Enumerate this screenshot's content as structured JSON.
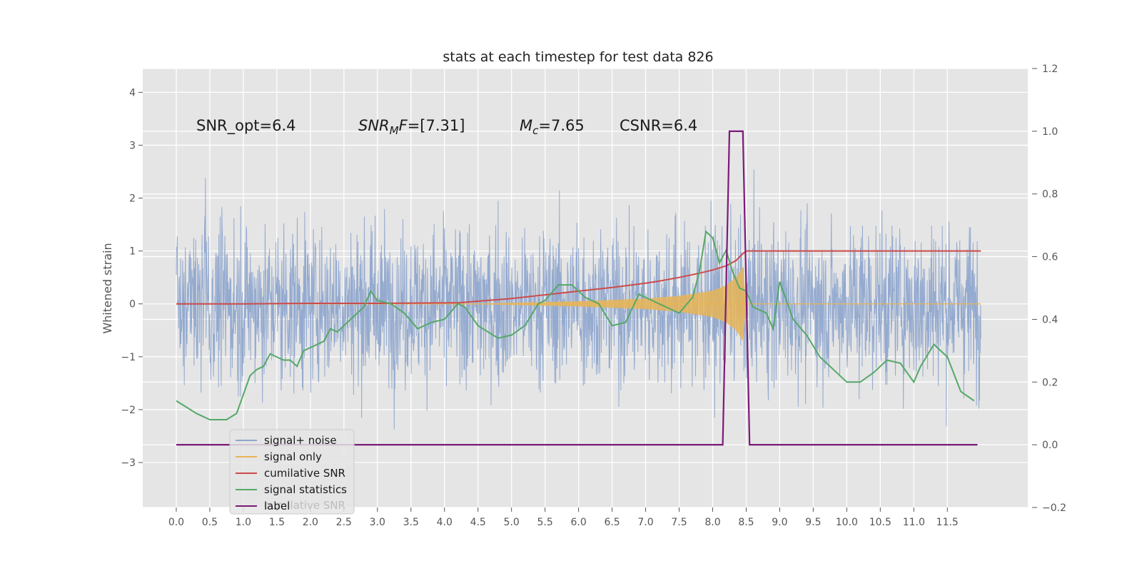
{
  "chart_data": {
    "type": "line",
    "title": "stats at each timestep for test data 826",
    "ylabel": "Whitened strain",
    "xlim": [
      -0.5,
      12.7
    ],
    "ylim": [
      -3.85,
      4.45
    ],
    "y2lim": [
      -0.2,
      1.2
    ],
    "xticks": [
      "0.0",
      "0.5",
      "1.0",
      "1.5",
      "2.0",
      "2.5",
      "3.0",
      "3.5",
      "4.0",
      "4.5",
      "5.0",
      "5.5",
      "6.0",
      "6.5",
      "7.0",
      "7.5",
      "8.0",
      "8.5",
      "9.0",
      "9.5",
      "10.0",
      "10.5",
      "11.0",
      "11.5"
    ],
    "yticks": [
      "4",
      "3",
      "2",
      "1",
      "0",
      "−1",
      "−2",
      "−3"
    ],
    "yticks_values": [
      4,
      3,
      2,
      1,
      0,
      -1,
      -2,
      -3
    ],
    "y2ticks": [
      "1.2",
      "1.0",
      "0.8",
      "0.6",
      "0.4",
      "0.2",
      "0.0",
      "−0.2"
    ],
    "y2ticks_values": [
      1.2,
      1.0,
      0.8,
      0.6,
      0.4,
      0.2,
      0.0,
      -0.2
    ],
    "grid": true,
    "legend_position": "lower-left",
    "annotations": {
      "snr_opt": "SNR_opt=6.4",
      "snr_mf_main": "SNR",
      "snr_mf_sub": "M",
      "snr_mf_tail": "F",
      "snr_mf_value": "=[7.31]",
      "mc_main": "M",
      "mc_sub": "c",
      "mc_value": "=7.65",
      "csnr": "CSNR=6.4"
    },
    "legend_ghost_text": "cumilative SNR",
    "series": [
      {
        "name": "signal+ noise",
        "axis": "left",
        "color": "#8fa6cd",
        "description_range": [
          -2.6,
          2.6
        ],
        "x_range": [
          0.0,
          12.0
        ]
      },
      {
        "name": "signal only",
        "axis": "left",
        "color": "#e8b556",
        "envelope": {
          "x": [
            4.2,
            5.0,
            6.0,
            7.0,
            7.5,
            8.0,
            8.2,
            8.35,
            8.45,
            8.5,
            12.0
          ],
          "amp": [
            0.0,
            0.02,
            0.05,
            0.1,
            0.15,
            0.25,
            0.35,
            0.5,
            0.7,
            0.0,
            0.0
          ]
        }
      },
      {
        "name": "cumilative SNR",
        "axis": "left",
        "color": "#cc4b4b",
        "x": [
          0.0,
          1.0,
          2.0,
          3.0,
          4.2,
          4.6,
          5.0,
          5.5,
          6.0,
          6.5,
          7.0,
          7.2,
          7.5,
          7.8,
          8.0,
          8.2,
          8.35,
          8.45,
          8.5,
          9.0,
          10.0,
          11.0,
          12.0
        ],
        "y": [
          0.0,
          0.0,
          0.01,
          0.01,
          0.02,
          0.06,
          0.1,
          0.17,
          0.24,
          0.31,
          0.39,
          0.43,
          0.5,
          0.58,
          0.64,
          0.72,
          0.82,
          0.95,
          1.0,
          1.0,
          1.0,
          1.0,
          1.0
        ]
      },
      {
        "name": "signal statistics",
        "axis": "right",
        "color": "#55a868",
        "x": [
          0.0,
          0.15,
          0.3,
          0.5,
          0.6,
          0.75,
          0.9,
          1.0,
          1.1,
          1.2,
          1.3,
          1.4,
          1.5,
          1.6,
          1.7,
          1.8,
          1.9,
          2.0,
          2.1,
          2.2,
          2.3,
          2.4,
          2.5,
          2.6,
          2.7,
          2.8,
          2.9,
          3.0,
          3.2,
          3.4,
          3.6,
          3.8,
          4.0,
          4.2,
          4.3,
          4.5,
          4.8,
          5.0,
          5.2,
          5.4,
          5.5,
          5.7,
          5.9,
          6.1,
          6.3,
          6.5,
          6.7,
          6.9,
          7.1,
          7.3,
          7.5,
          7.7,
          7.8,
          7.9,
          8.0,
          8.1,
          8.2,
          8.3,
          8.4,
          8.5,
          8.6,
          8.8,
          8.9,
          9.0,
          9.2,
          9.4,
          9.6,
          9.8,
          10.0,
          10.2,
          10.4,
          10.6,
          10.8,
          11.0,
          11.1,
          11.3,
          11.5,
          11.7,
          11.9
        ],
        "y": [
          0.14,
          0.12,
          0.1,
          0.08,
          0.08,
          0.08,
          0.1,
          0.16,
          0.22,
          0.24,
          0.25,
          0.29,
          0.28,
          0.27,
          0.27,
          0.25,
          0.3,
          0.31,
          0.32,
          0.33,
          0.37,
          0.36,
          0.38,
          0.4,
          0.42,
          0.44,
          0.49,
          0.46,
          0.45,
          0.42,
          0.37,
          0.39,
          0.4,
          0.45,
          0.44,
          0.38,
          0.34,
          0.35,
          0.38,
          0.45,
          0.46,
          0.51,
          0.51,
          0.47,
          0.45,
          0.38,
          0.39,
          0.48,
          0.46,
          0.44,
          0.42,
          0.47,
          0.55,
          0.68,
          0.66,
          0.58,
          0.62,
          0.55,
          0.5,
          0.49,
          0.44,
          0.42,
          0.37,
          0.52,
          0.4,
          0.35,
          0.28,
          0.24,
          0.2,
          0.2,
          0.23,
          0.27,
          0.26,
          0.2,
          0.25,
          0.32,
          0.28,
          0.17,
          0.14
        ]
      },
      {
        "name": "label",
        "axis": "right",
        "color": "#7b1a78",
        "x": [
          0.0,
          8.15,
          8.25,
          8.45,
          8.55,
          11.95
        ],
        "y": [
          0.0,
          0.0,
          1.0,
          1.0,
          0.0,
          0.0
        ]
      }
    ]
  }
}
